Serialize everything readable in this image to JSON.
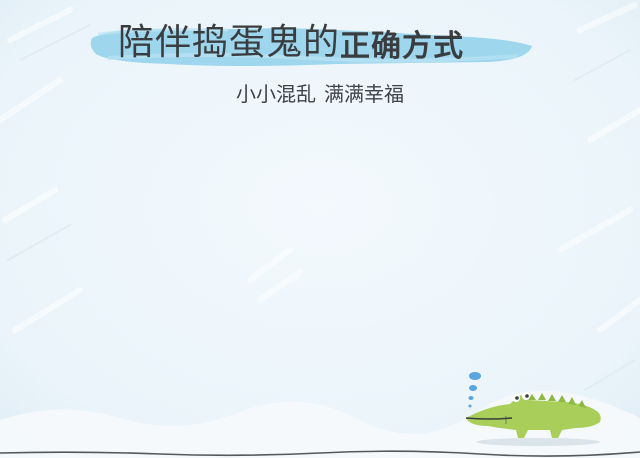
{
  "title": {
    "part1": "陪伴捣蛋鬼的",
    "part2": "正确方式"
  },
  "subtitle": {
    "left": "小小混乱",
    "right": "满满幸福"
  },
  "colors": {
    "background": "#eef6fb",
    "brush_stroke": "#8fd0ea",
    "title_text": "#3a3d40",
    "crocodile": "#a9cf5a",
    "bubble": "#5aa6e0"
  },
  "illustration": {
    "mascot": "crocodile-icon",
    "bubbles": "thought-bubbles-icon"
  }
}
